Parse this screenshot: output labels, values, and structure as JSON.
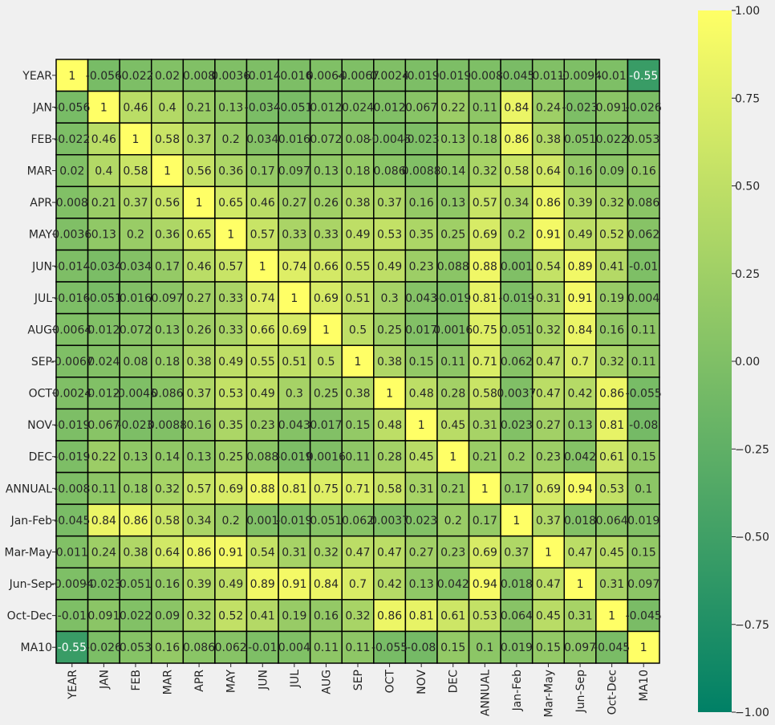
{
  "chart_data": {
    "type": "heatmap",
    "title": "",
    "xlabel": "",
    "ylabel": "",
    "labels": [
      "YEAR",
      "JAN",
      "FEB",
      "MAR",
      "APR",
      "MAY",
      "JUN",
      "JUL",
      "AUG",
      "SEP",
      "OCT",
      "NOV",
      "DEC",
      "ANNUAL",
      "Jan-Feb",
      "Mar-May",
      "Jun-Sep",
      "Oct-Dec",
      "MA10"
    ],
    "cell_labels": [
      [
        "1",
        "-0.056",
        "-0.022",
        "0.02",
        "0.008",
        "0.0036",
        "-0.014",
        "-0.016",
        "0.0064",
        "-0.0067",
        "0.0024",
        "-0.019",
        "-0.019",
        "-0.008",
        "-0.045",
        "0.011",
        "-0.0094",
        "-0.01",
        "-0.55"
      ],
      [
        "-0.056",
        "1",
        "0.46",
        "0.4",
        "0.21",
        "0.13",
        "-0.034",
        "-0.051",
        "0.012",
        "0.024",
        "0.012",
        "0.067",
        "0.22",
        "0.11",
        "0.84",
        "0.24",
        "-0.023",
        "0.091",
        "-0.026"
      ],
      [
        "-0.022",
        "0.46",
        "1",
        "0.58",
        "0.37",
        "0.2",
        "0.034",
        "0.016",
        "0.072",
        "0.08",
        "-0.0045",
        "-0.023",
        "0.13",
        "0.18",
        "0.86",
        "0.38",
        "0.051",
        "0.022",
        "0.053"
      ],
      [
        "0.02",
        "0.4",
        "0.58",
        "1",
        "0.56",
        "0.36",
        "0.17",
        "0.097",
        "0.13",
        "0.18",
        "0.086",
        "0.0088",
        "0.14",
        "0.32",
        "0.58",
        "0.64",
        "0.16",
        "0.09",
        "0.16"
      ],
      [
        "0.008",
        "0.21",
        "0.37",
        "0.56",
        "1",
        "0.65",
        "0.46",
        "0.27",
        "0.26",
        "0.38",
        "0.37",
        "0.16",
        "0.13",
        "0.57",
        "0.34",
        "0.86",
        "0.39",
        "0.32",
        "0.086"
      ],
      [
        "0.0036",
        "0.13",
        "0.2",
        "0.36",
        "0.65",
        "1",
        "0.57",
        "0.33",
        "0.33",
        "0.49",
        "0.53",
        "0.35",
        "0.25",
        "0.69",
        "0.2",
        "0.91",
        "0.49",
        "0.52",
        "0.062"
      ],
      [
        "-0.014",
        "-0.034",
        "0.034",
        "0.17",
        "0.46",
        "0.57",
        "1",
        "0.74",
        "0.66",
        "0.55",
        "0.49",
        "0.23",
        "0.088",
        "0.88",
        "0.001",
        "0.54",
        "0.89",
        "0.41",
        "-0.01"
      ],
      [
        "-0.016",
        "-0.051",
        "0.016",
        "0.097",
        "0.27",
        "0.33",
        "0.74",
        "1",
        "0.69",
        "0.51",
        "0.3",
        "0.043",
        "-0.019",
        "0.81",
        "-0.019",
        "0.31",
        "0.91",
        "0.19",
        "0.004"
      ],
      [
        "0.0064",
        "0.012",
        "0.072",
        "0.13",
        "0.26",
        "0.33",
        "0.66",
        "0.69",
        "1",
        "0.5",
        "0.25",
        "0.017",
        "0.0016",
        "0.75",
        "0.051",
        "0.32",
        "0.84",
        "0.16",
        "0.11"
      ],
      [
        "-0.0067",
        "0.024",
        "0.08",
        "0.18",
        "0.38",
        "0.49",
        "0.55",
        "0.51",
        "0.5",
        "1",
        "0.38",
        "0.15",
        "0.11",
        "0.71",
        "0.062",
        "0.47",
        "0.7",
        "0.32",
        "0.11"
      ],
      [
        "0.0024",
        "0.012",
        "-0.0045",
        "0.086",
        "0.37",
        "0.53",
        "0.49",
        "0.3",
        "0.25",
        "0.38",
        "1",
        "0.48",
        "0.28",
        "0.58",
        "0.0037",
        "0.47",
        "0.42",
        "0.86",
        "-0.055"
      ],
      [
        "-0.019",
        "0.067",
        "-0.023",
        "0.0088",
        "0.16",
        "0.35",
        "0.23",
        "0.043",
        "0.017",
        "0.15",
        "0.48",
        "1",
        "0.45",
        "0.31",
        "0.023",
        "0.27",
        "0.13",
        "0.81",
        "-0.08"
      ],
      [
        "-0.019",
        "0.22",
        "0.13",
        "0.14",
        "0.13",
        "0.25",
        "0.088",
        "-0.019",
        "0.0016",
        "0.11",
        "0.28",
        "0.45",
        "1",
        "0.21",
        "0.2",
        "0.23",
        "0.042",
        "0.61",
        "0.15"
      ],
      [
        "-0.008",
        "0.11",
        "0.18",
        "0.32",
        "0.57",
        "0.69",
        "0.88",
        "0.81",
        "0.75",
        "0.71",
        "0.58",
        "0.31",
        "0.21",
        "1",
        "0.17",
        "0.69",
        "0.94",
        "0.53",
        "0.1"
      ],
      [
        "-0.045",
        "0.84",
        "0.86",
        "0.58",
        "0.34",
        "0.2",
        "0.001",
        "-0.019",
        "0.051",
        "0.062",
        "0.0037",
        "0.023",
        "0.2",
        "0.17",
        "1",
        "0.37",
        "0.018",
        "0.064",
        "0.019"
      ],
      [
        "0.011",
        "0.24",
        "0.38",
        "0.64",
        "0.86",
        "0.91",
        "0.54",
        "0.31",
        "0.32",
        "0.47",
        "0.47",
        "0.27",
        "0.23",
        "0.69",
        "0.37",
        "1",
        "0.47",
        "0.45",
        "0.15"
      ],
      [
        "-0.0094",
        "-0.023",
        "0.051",
        "0.16",
        "0.39",
        "0.49",
        "0.89",
        "0.91",
        "0.84",
        "0.7",
        "0.42",
        "0.13",
        "0.042",
        "0.94",
        "0.018",
        "0.47",
        "1",
        "0.31",
        "0.097"
      ],
      [
        "-0.01",
        "0.091",
        "0.022",
        "0.09",
        "0.32",
        "0.52",
        "0.41",
        "0.19",
        "0.16",
        "0.32",
        "0.86",
        "0.81",
        "0.61",
        "0.53",
        "0.064",
        "0.45",
        "0.31",
        "1",
        "-0.045"
      ],
      [
        "-0.55",
        "-0.026",
        "0.053",
        "0.16",
        "0.086",
        "0.062",
        "-0.01",
        "0.004",
        "0.11",
        "0.11",
        "-0.055",
        "-0.08",
        "0.15",
        "0.1",
        "0.019",
        "0.15",
        "0.097",
        "-0.045",
        "1"
      ]
    ],
    "colorscale": {
      "name": "summer",
      "vmin": -1.0,
      "vmax": 1.0,
      "low_color": "#008066",
      "high_color": "#ffff66",
      "ticks": [
        "1.00",
        "0.75",
        "0.50",
        "0.25",
        "0.00",
        "−0.25",
        "−0.50",
        "−0.75",
        "−1.00"
      ]
    },
    "grid": true,
    "colorbar_placement": "right"
  }
}
